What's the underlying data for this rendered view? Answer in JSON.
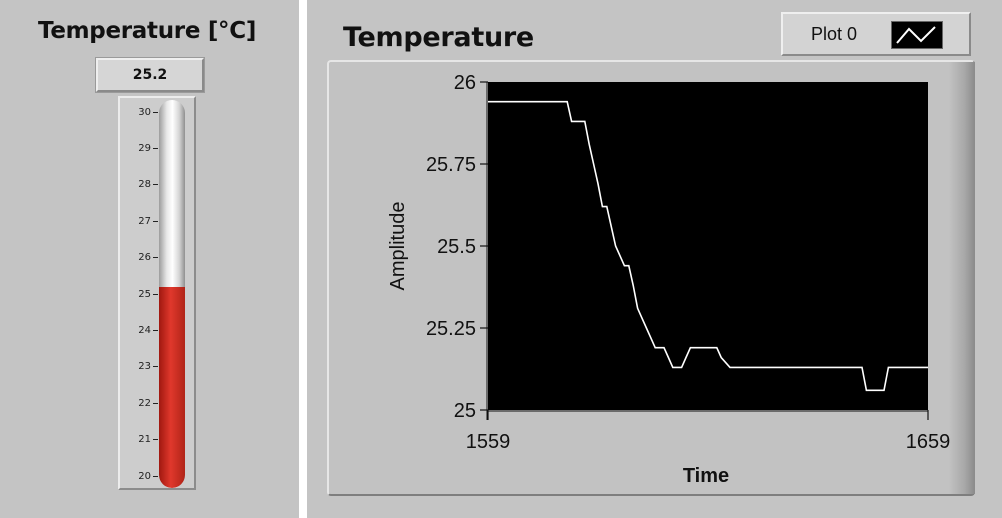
{
  "thermometer": {
    "title": "Temperature [°C]",
    "value": "25.2",
    "level": 25.2,
    "scale_min": 20,
    "scale_max": 30,
    "ticks": [
      "30",
      "29",
      "28",
      "27",
      "26",
      "25",
      "24",
      "23",
      "22",
      "21",
      "20"
    ],
    "fill_color": "#e0382c"
  },
  "chart": {
    "title": "Temperature",
    "legend_label": "Plot 0"
  },
  "chart_data": {
    "type": "line",
    "title": "Temperature",
    "xlabel": "Time",
    "ylabel": "Amplitude",
    "xlim": [
      1559,
      1659
    ],
    "ylim": [
      25,
      26
    ],
    "x_ticks": [
      "1559",
      "1659"
    ],
    "y_ticks": [
      "26",
      "25.75",
      "25.5",
      "25.25",
      "25"
    ],
    "grid": false,
    "background": "#000000",
    "line_color": "#ffffff",
    "series": [
      {
        "name": "Plot 0",
        "x": [
          1559,
          1577,
          1578,
          1581,
          1582,
          1583,
          1584,
          1585,
          1586,
          1587,
          1588,
          1589,
          1590,
          1591,
          1592,
          1593,
          1594,
          1595,
          1596,
          1597,
          1598,
          1599,
          1600,
          1601,
          1602,
          1603,
          1604,
          1605,
          1606,
          1607,
          1608,
          1609,
          1610,
          1611,
          1612,
          1614,
          1615,
          1618,
          1619,
          1627,
          1628,
          1644,
          1645,
          1649,
          1650,
          1659
        ],
        "y": [
          25.94,
          25.94,
          25.88,
          25.88,
          25.81,
          25.75,
          25.69,
          25.62,
          25.62,
          25.56,
          25.5,
          25.47,
          25.44,
          25.44,
          25.38,
          25.31,
          25.28,
          25.25,
          25.22,
          25.19,
          25.19,
          25.19,
          25.16,
          25.13,
          25.13,
          25.13,
          25.16,
          25.19,
          25.19,
          25.19,
          25.19,
          25.19,
          25.19,
          25.19,
          25.16,
          25.13,
          25.13,
          25.13,
          25.13,
          25.13,
          25.13,
          25.13,
          25.06,
          25.06,
          25.13,
          25.13
        ]
      }
    ]
  }
}
